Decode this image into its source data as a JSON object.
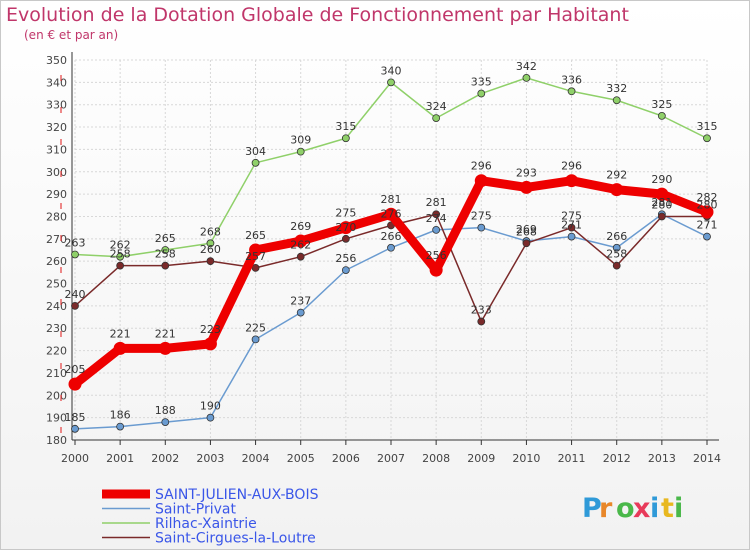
{
  "chart_data": {
    "type": "line",
    "title": "Evolution de la Dotation Globale de Fonctionnement par Habitant",
    "subtitle": "(en € et par an)",
    "x": [
      "2000",
      "2001",
      "2002",
      "2003",
      "2004",
      "2005",
      "2006",
      "2007",
      "2008",
      "2009",
      "2010",
      "2011",
      "2012",
      "2013",
      "2014"
    ],
    "yticks": [
      180,
      190,
      200,
      210,
      220,
      230,
      240,
      250,
      260,
      270,
      280,
      290,
      300,
      310,
      320,
      330,
      340,
      350
    ],
    "ylim": [
      180,
      350
    ],
    "series": [
      {
        "name": "SAINT-JULIEN-AUX-BOIS",
        "color": "#ee0000",
        "values": [
          205,
          221,
          221,
          223,
          265,
          269,
          275,
          281,
          256,
          296,
          293,
          296,
          292,
          290,
          282
        ]
      },
      {
        "name": "Saint-Privat",
        "color": "#6a9bd0",
        "values": [
          185,
          186,
          188,
          190,
          225,
          237,
          256,
          266,
          274,
          275,
          269,
          271,
          266,
          281,
          271
        ]
      },
      {
        "name": "Rilhac-Xaintrie",
        "color": "#8fd069",
        "values": [
          263,
          262,
          265,
          268,
          304,
          309,
          315,
          340,
          324,
          335,
          342,
          336,
          332,
          325,
          315
        ]
      },
      {
        "name": "Saint-Cirgues-la-Loutre",
        "color": "#7a2a2a",
        "values": [
          240,
          258,
          258,
          260,
          257,
          262,
          270,
          276,
          281,
          233,
          268,
          275,
          258,
          280,
          280
        ]
      }
    ]
  },
  "brand": {
    "letters": [
      "P",
      "r",
      "o",
      "x",
      "i",
      "t",
      "i"
    ]
  }
}
